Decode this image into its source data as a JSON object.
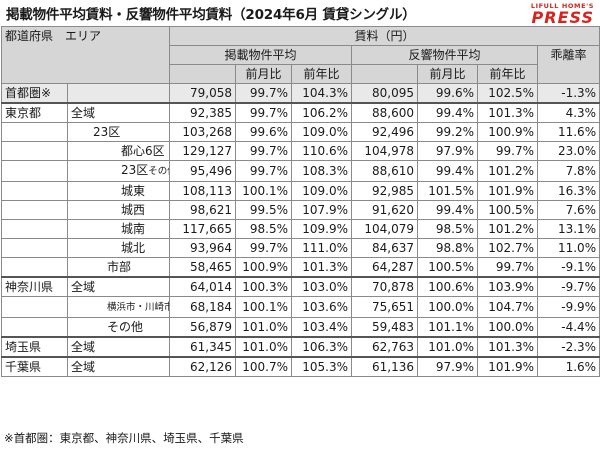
{
  "title": "掲載物件平均賃料・反響物件平均賃料（2024年6月 賃貸シングル）",
  "logo": {
    "top": "LIFULL HOME'S",
    "main": "PRESS"
  },
  "header": {
    "area_label": "都道府県　エリア",
    "rent_label": "賃料（円）",
    "listed_label": "掲載物件平均",
    "response_label": "反響物件平均",
    "divergence_label": "乖離率",
    "mom_label": "前月比",
    "yoy_label": "前年比"
  },
  "rows": [
    {
      "pref": "首都圏※",
      "area": "",
      "l_rent": "79,058",
      "l_mom": "99.7%",
      "l_yoy": "104.3%",
      "r_rent": "80,095",
      "r_mom": "99.6%",
      "r_yoy": "102.5%",
      "div": "-1.3%"
    },
    {
      "pref": "東京都",
      "area": "全域",
      "l_rent": "92,385",
      "l_mom": "99.7%",
      "l_yoy": "106.2%",
      "r_rent": "88,600",
      "r_mom": "99.4%",
      "r_yoy": "101.3%",
      "div": "4.3%"
    },
    {
      "pref": "",
      "area": "23区",
      "l_rent": "103,268",
      "l_mom": "99.6%",
      "l_yoy": "109.0%",
      "r_rent": "92,496",
      "r_mom": "99.2%",
      "r_yoy": "100.9%",
      "div": "11.6%"
    },
    {
      "pref": "",
      "area": "都心6区",
      "l_rent": "129,127",
      "l_mom": "99.7%",
      "l_yoy": "110.6%",
      "r_rent": "104,978",
      "r_mom": "97.9%",
      "r_yoy": "99.7%",
      "div": "23.0%"
    },
    {
      "pref": "",
      "area": "23区",
      "area_sub": "その他",
      "l_rent": "95,496",
      "l_mom": "99.7%",
      "l_yoy": "108.3%",
      "r_rent": "88,610",
      "r_mom": "99.4%",
      "r_yoy": "101.2%",
      "div": "7.8%"
    },
    {
      "pref": "",
      "area": "城東",
      "l_rent": "108,113",
      "l_mom": "100.1%",
      "l_yoy": "109.0%",
      "r_rent": "92,985",
      "r_mom": "101.5%",
      "r_yoy": "101.9%",
      "div": "16.3%"
    },
    {
      "pref": "",
      "area": "城西",
      "l_rent": "98,621",
      "l_mom": "99.5%",
      "l_yoy": "107.9%",
      "r_rent": "91,620",
      "r_mom": "99.4%",
      "r_yoy": "100.5%",
      "div": "7.6%"
    },
    {
      "pref": "",
      "area": "城南",
      "l_rent": "117,665",
      "l_mom": "98.5%",
      "l_yoy": "109.9%",
      "r_rent": "104,079",
      "r_mom": "98.5%",
      "r_yoy": "101.2%",
      "div": "13.1%"
    },
    {
      "pref": "",
      "area": "城北",
      "l_rent": "93,964",
      "l_mom": "99.7%",
      "l_yoy": "111.0%",
      "r_rent": "84,637",
      "r_mom": "98.8%",
      "r_yoy": "102.7%",
      "div": "11.0%"
    },
    {
      "pref": "",
      "area": "市部",
      "l_rent": "58,465",
      "l_mom": "100.9%",
      "l_yoy": "101.3%",
      "r_rent": "64,287",
      "r_mom": "100.5%",
      "r_yoy": "99.7%",
      "div": "-9.1%"
    },
    {
      "pref": "神奈川県",
      "area": "全域",
      "l_rent": "64,014",
      "l_mom": "100.3%",
      "l_yoy": "103.0%",
      "r_rent": "70,878",
      "r_mom": "100.6%",
      "r_yoy": "103.9%",
      "div": "-9.7%"
    },
    {
      "pref": "",
      "area": "横浜市・川崎市",
      "l_rent": "68,184",
      "l_mom": "100.1%",
      "l_yoy": "103.6%",
      "r_rent": "75,651",
      "r_mom": "100.0%",
      "r_yoy": "104.7%",
      "div": "-9.9%"
    },
    {
      "pref": "",
      "area": "その他",
      "l_rent": "56,879",
      "l_mom": "101.0%",
      "l_yoy": "103.4%",
      "r_rent": "59,483",
      "r_mom": "101.1%",
      "r_yoy": "100.0%",
      "div": "-4.4%"
    },
    {
      "pref": "埼玉県",
      "area": "全域",
      "l_rent": "61,345",
      "l_mom": "101.0%",
      "l_yoy": "106.3%",
      "r_rent": "62,763",
      "r_mom": "101.0%",
      "r_yoy": "101.3%",
      "div": "-2.3%"
    },
    {
      "pref": "千葉県",
      "area": "全域",
      "l_rent": "62,126",
      "l_mom": "100.7%",
      "l_yoy": "105.3%",
      "r_rent": "61,136",
      "r_mom": "97.9%",
      "r_yoy": "101.9%",
      "div": "1.6%"
    }
  ],
  "footnote": "※首都圏：東京都、神奈川県、埼玉県、千葉県"
}
